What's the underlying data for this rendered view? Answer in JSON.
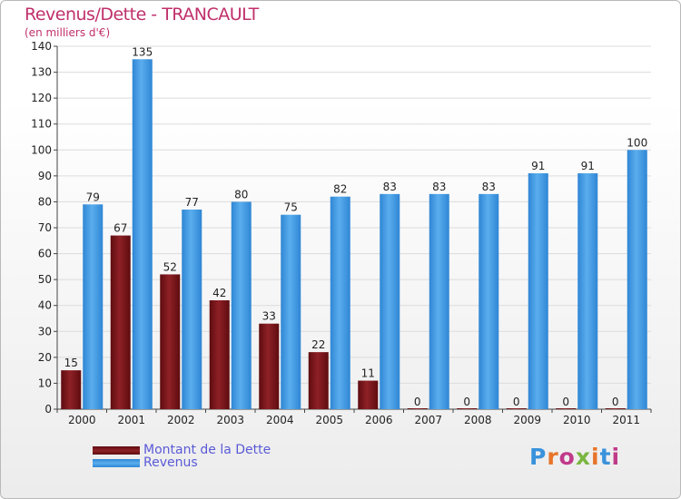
{
  "header": {
    "title": "Revenus/Dette - TRANCAULT",
    "subtitle": "(en milliers d'€)"
  },
  "chart_data": {
    "type": "bar",
    "title": "Revenus/Dette - TRANCAULT",
    "subtitle": "(en milliers d'€)",
    "categories": [
      "2000",
      "2001",
      "2002",
      "2003",
      "2004",
      "2005",
      "2006",
      "2007",
      "2008",
      "2009",
      "2010",
      "2011"
    ],
    "series": [
      {
        "name": "Montant de la Dette",
        "color": "#7a1418",
        "values": [
          15,
          67,
          52,
          42,
          33,
          22,
          11,
          0,
          0,
          0,
          0,
          0
        ]
      },
      {
        "name": "Revenus",
        "color": "#3a92dc",
        "values": [
          79,
          135,
          77,
          80,
          75,
          82,
          83,
          83,
          83,
          91,
          91,
          100
        ]
      }
    ],
    "ylim": [
      0,
      140
    ],
    "yticks": [
      0,
      10,
      20,
      30,
      40,
      50,
      60,
      70,
      80,
      90,
      100,
      110,
      120,
      130,
      140
    ],
    "grid": true,
    "legend": "bottom-left",
    "data_labels": true
  },
  "legend": {
    "items": [
      {
        "label": "Montant de la Dette",
        "color": "#7a1418"
      },
      {
        "label": "Revenus",
        "color": "#3a92dc"
      }
    ]
  },
  "brand": {
    "text": "Proxiti",
    "colors": [
      "#3a92dc",
      "#e8742a",
      "#c03a8a",
      "#7ab640",
      "#e8742a",
      "#3a92dc",
      "#c03a8a"
    ]
  }
}
